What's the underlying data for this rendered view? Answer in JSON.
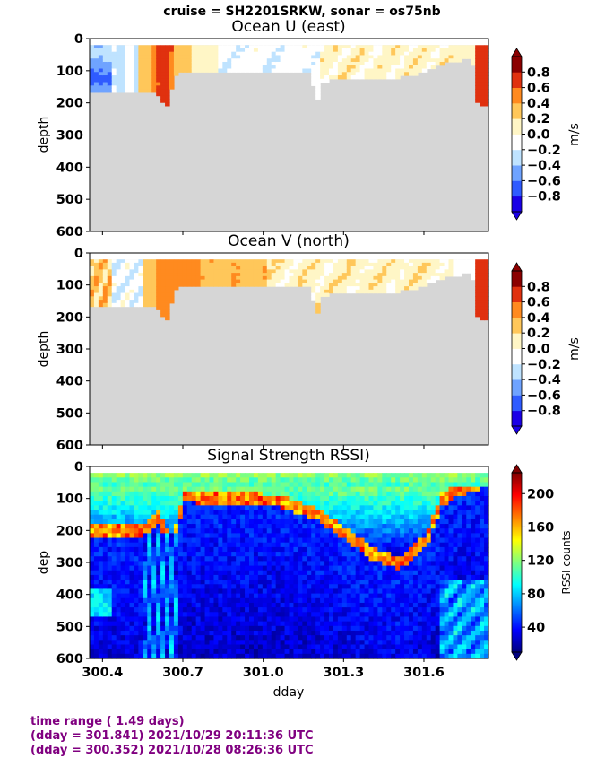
{
  "suptitle": "cruise = SH2201SRKW,  sonar = os75nb",
  "footer": {
    "line1": "time range ( 1.49 days)",
    "line2": "(dday = 301.841) 2021/10/29 20:11:36 UTC",
    "line3": "(dday = 300.352) 2021/10/28 08:26:36 UTC"
  },
  "colors": {
    "no_data": "#d6d6d6",
    "footer_text": "#800080",
    "diverging_colormap": [
      "#1a00e6",
      "#2f5bff",
      "#6fa3ff",
      "#bfe3ff",
      "#ffffff",
      "#fff6c6",
      "#ffc75a",
      "#ff8a1f",
      "#e0310f",
      "#8b0000"
    ],
    "jet": [
      "#00007f",
      "#0000ff",
      "#007fff",
      "#00ffff",
      "#7fff7f",
      "#ffff00",
      "#ff7f00",
      "#ff0000",
      "#7f0000"
    ]
  },
  "chart_data": [
    {
      "type": "heatmap",
      "title": "Ocean U (east)",
      "ylabel": "depth",
      "xlim": [
        300.352,
        301.841
      ],
      "ylim": [
        600,
        0
      ],
      "yticks": [
        "0",
        "100",
        "200",
        "300",
        "400",
        "500",
        "600"
      ],
      "colorbar": {
        "label": "m/s",
        "ticks": [
          "0.8",
          "0.6",
          "0.4",
          "0.2",
          "0.0",
          "−0.2",
          "−0.4",
          "−0.6",
          "−0.8"
        ],
        "range": [
          -0.8,
          0.8
        ],
        "extend": "both"
      },
      "bottom_depth_profile": {
        "dday": [
          300.352,
          300.41,
          300.5,
          300.56,
          300.6,
          300.63,
          300.65,
          300.66,
          300.68,
          300.8,
          300.95,
          301.05,
          301.1,
          301.15,
          301.18,
          301.2,
          301.22,
          301.26,
          301.35,
          301.45,
          301.55,
          301.6,
          301.7,
          301.78,
          301.8,
          301.82,
          301.841
        ],
        "depth": [
          165,
          165,
          165,
          165,
          160,
          200,
          215,
          130,
          100,
          100,
          100,
          100,
          100,
          100,
          100,
          195,
          130,
          120,
          120,
          120,
          110,
          95,
          65,
          60,
          200,
          200,
          200
        ]
      },
      "features": [
        {
          "dday": 300.62,
          "depth": [
            20,
            170
          ],
          "u": 0.8
        },
        {
          "dday": 300.36,
          "depth": [
            20,
            150
          ],
          "u": -0.6
        },
        {
          "dday": 301.81,
          "depth": [
            20,
            190
          ],
          "u": 0.8
        },
        {
          "dday": 301.1,
          "depth": [
            20,
            90
          ],
          "u": -0.2
        }
      ]
    },
    {
      "type": "heatmap",
      "title": "Ocean V (north)",
      "ylabel": "depth",
      "xlim": [
        300.352,
        301.841
      ],
      "ylim": [
        600,
        0
      ],
      "yticks": [
        "0",
        "100",
        "200",
        "300",
        "400",
        "500",
        "600"
      ],
      "colorbar": {
        "label": "m/s",
        "ticks": [
          "0.8",
          "0.6",
          "0.4",
          "0.2",
          "0.0",
          "−0.2",
          "−0.4",
          "−0.6",
          "−0.8"
        ],
        "range": [
          -0.8,
          0.8
        ],
        "extend": "both"
      },
      "features": [
        {
          "dday": [
            300.6,
            300.75
          ],
          "depth": [
            20,
            110
          ],
          "v": 0.5
        },
        {
          "dday": [
            300.75,
            301.0
          ],
          "depth": [
            20,
            80
          ],
          "v": 0.4
        },
        {
          "dday": [
            301.1,
            301.7
          ],
          "depth": [
            20,
            110
          ],
          "v": 0.1
        },
        {
          "dday": 301.81,
          "depth": [
            20,
            190
          ],
          "v": 0.8
        }
      ]
    },
    {
      "type": "heatmap",
      "title": "Signal Strength RSSI)",
      "ylabel": "dep",
      "xlabel": "dday",
      "xlim": [
        300.352,
        301.841
      ],
      "ylim": [
        600,
        0
      ],
      "xticks": [
        "300.4",
        "300.7",
        "301.0",
        "301.3",
        "301.6"
      ],
      "xtick_values": [
        300.4,
        300.7,
        301.0,
        301.3,
        301.6
      ],
      "yticks": [
        "0",
        "100",
        "200",
        "300",
        "400",
        "500",
        "600"
      ],
      "colorbar": {
        "label": "RSSI counts",
        "ticks": [
          "200",
          "160",
          "120",
          "80",
          "40"
        ],
        "range": [
          10,
          225
        ],
        "extend": "both"
      },
      "bottom_echo_profile": {
        "dday": [
          300.352,
          300.45,
          300.55,
          300.6,
          300.65,
          300.7,
          300.9,
          301.05,
          301.2,
          301.3,
          301.4,
          301.5,
          301.6,
          301.66,
          301.72,
          301.841
        ],
        "depth": [
          200,
          200,
          200,
          150,
          240,
          90,
          100,
          105,
          150,
          210,
          270,
          300,
          230,
          100,
          70,
          40
        ]
      }
    }
  ]
}
